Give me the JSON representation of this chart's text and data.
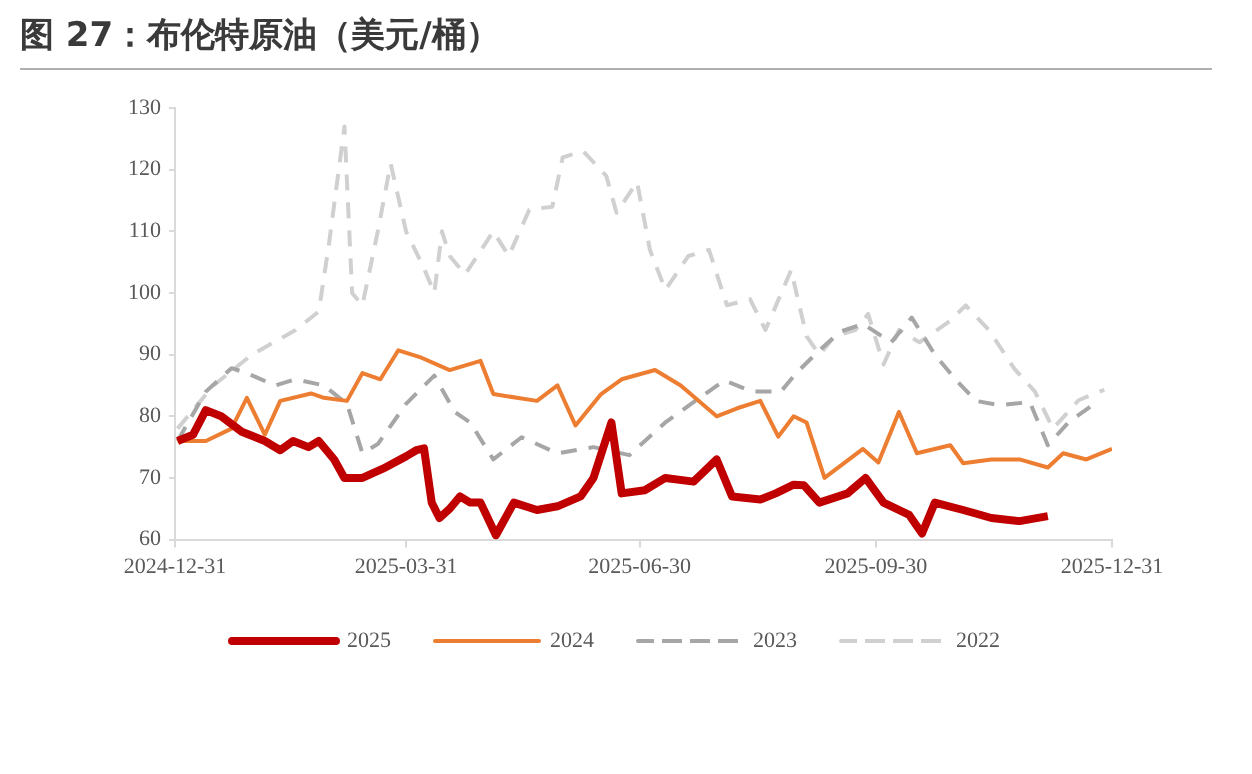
{
  "chart_data": {
    "type": "line",
    "title": "图 27：布伦特原油（美元/桶）",
    "xlim": [
      "2024-12-31",
      "2025-12-31"
    ],
    "xticks": [
      "2024-12-31",
      "2025-03-31",
      "2025-06-30",
      "2025-09-30",
      "2025-12-31"
    ],
    "ylim": [
      60,
      130
    ],
    "yticks": [
      60,
      70,
      80,
      90,
      100,
      110,
      120,
      130
    ],
    "grid": false,
    "legend": "bottom",
    "marker": "none",
    "series": [
      {
        "name": "2025",
        "color": "#c00000",
        "line_style": "solid",
        "x": [
          "2025-01-01",
          "2025-01-07",
          "2025-01-12",
          "2025-01-18",
          "2025-01-26",
          "2025-02-04",
          "2025-02-10",
          "2025-02-15",
          "2025-02-21",
          "2025-02-25",
          "2025-03-03",
          "2025-03-07",
          "2025-03-14",
          "2025-03-22",
          "2025-03-31",
          "2025-04-04",
          "2025-04-07",
          "2025-04-10",
          "2025-04-13",
          "2025-04-17",
          "2025-04-21",
          "2025-04-25",
          "2025-04-29",
          "2025-05-05",
          "2025-05-12",
          "2025-05-21",
          "2025-05-29",
          "2025-06-07",
          "2025-06-12",
          "2025-06-19",
          "2025-06-23",
          "2025-07-02",
          "2025-07-10",
          "2025-07-21",
          "2025-07-30",
          "2025-08-05",
          "2025-08-16",
          "2025-08-22",
          "2025-08-29",
          "2025-09-02",
          "2025-09-08",
          "2025-09-19",
          "2025-09-26",
          "2025-10-03",
          "2025-10-13",
          "2025-10-18",
          "2025-10-23",
          "2025-11-03",
          "2025-11-14",
          "2025-11-25",
          "2025-12-06"
        ],
        "values": [
          76,
          77,
          81,
          80,
          77.5,
          76,
          74.5,
          76,
          75,
          76,
          73,
          70,
          70,
          71.5,
          73.5,
          74.5,
          74.8,
          66,
          63.5,
          65,
          67,
          66,
          66,
          60.7,
          66,
          64.8,
          65.4,
          67,
          70,
          79,
          67.5,
          68,
          70,
          69.4,
          73,
          67,
          66.5,
          67.5,
          68.9,
          68.8,
          66,
          67.5,
          70,
          66,
          64,
          61,
          66,
          64.8,
          63.5,
          63,
          63.8
        ]
      },
      {
        "name": "2024",
        "color": "#ed7d31",
        "line_style": "solid",
        "x": [
          "2025-01-01",
          "2025-01-12",
          "2025-01-22",
          "2025-01-28",
          "2025-02-04",
          "2025-02-10",
          "2025-02-22",
          "2025-02-27",
          "2025-03-08",
          "2025-03-14",
          "2025-03-21",
          "2025-03-28",
          "2025-04-06",
          "2025-04-17",
          "2025-04-29",
          "2025-05-04",
          "2025-05-21",
          "2025-05-29",
          "2025-06-05",
          "2025-06-15",
          "2025-06-23",
          "2025-07-06",
          "2025-07-16",
          "2025-07-30",
          "2025-08-07",
          "2025-08-16",
          "2025-08-23",
          "2025-08-29",
          "2025-09-03",
          "2025-09-10",
          "2025-09-25",
          "2025-10-01",
          "2025-10-09",
          "2025-10-16",
          "2025-10-29",
          "2025-11-03",
          "2025-11-14",
          "2025-11-25",
          "2025-12-06",
          "2025-12-12",
          "2025-12-21",
          "2025-12-31"
        ],
        "values": [
          76,
          76,
          78,
          83,
          77,
          82.5,
          83.7,
          83,
          82.5,
          87,
          86,
          90.7,
          89.5,
          87.5,
          89,
          83.6,
          82.5,
          85,
          78.5,
          83.6,
          86,
          87.5,
          85,
          80,
          81.3,
          82.5,
          76.7,
          80,
          79,
          70,
          74.7,
          72.5,
          80.7,
          74,
          75.3,
          72.4,
          73,
          73,
          71.7,
          74,
          73,
          74.7
        ]
      },
      {
        "name": "2023",
        "color": "#a6a6a6",
        "line_style": "dashed",
        "x": [
          "2025-01-01",
          "2025-01-12",
          "2025-01-22",
          "2025-01-28",
          "2025-02-08",
          "2025-02-16",
          "2025-02-27",
          "2025-03-08",
          "2025-03-14",
          "2025-03-20",
          "2025-03-31",
          "2025-04-11",
          "2025-04-19",
          "2025-04-25",
          "2025-05-04",
          "2025-05-15",
          "2025-05-29",
          "2025-06-12",
          "2025-06-26",
          "2025-07-10",
          "2025-07-21",
          "2025-08-02",
          "2025-08-13",
          "2025-08-24",
          "2025-08-30",
          "2025-09-08",
          "2025-09-16",
          "2025-09-25",
          "2025-10-06",
          "2025-10-14",
          "2025-10-23",
          "2025-10-31",
          "2025-11-08",
          "2025-11-17",
          "2025-11-29",
          "2025-12-06",
          "2025-12-14",
          "2025-12-24"
        ],
        "values": [
          76,
          84,
          87.8,
          87,
          85,
          86,
          85,
          82,
          74,
          75.5,
          82,
          86.6,
          80.7,
          79,
          73,
          76.6,
          74,
          75,
          73.7,
          79,
          82.3,
          85.8,
          84,
          84,
          87,
          90.7,
          93.7,
          95,
          92,
          96,
          90,
          86,
          82.5,
          81.8,
          82.3,
          75.3,
          79,
          82
        ]
      },
      {
        "name": "2022",
        "color": "#d0d0d0",
        "line_style": "dashed",
        "x": [
          "2025-01-01",
          "2025-01-15",
          "2025-01-30",
          "2025-02-16",
          "2025-02-25",
          "2025-03-01",
          "2025-03-07",
          "2025-03-10",
          "2025-03-14",
          "2025-03-20",
          "2025-03-25",
          "2025-03-31",
          "2025-04-07",
          "2025-04-11",
          "2025-04-14",
          "2025-04-17",
          "2025-04-23",
          "2025-05-04",
          "2025-05-10",
          "2025-05-18",
          "2025-05-27",
          "2025-05-31",
          "2025-06-08",
          "2025-06-17",
          "2025-06-21",
          "2025-06-29",
          "2025-07-04",
          "2025-07-10",
          "2025-07-19",
          "2025-07-27",
          "2025-08-03",
          "2025-08-12",
          "2025-08-18",
          "2025-08-28",
          "2025-09-03",
          "2025-09-08",
          "2025-09-14",
          "2025-09-22",
          "2025-09-27",
          "2025-10-03",
          "2025-10-09",
          "2025-10-17",
          "2025-10-29",
          "2025-11-04",
          "2025-11-13",
          "2025-11-23",
          "2025-12-01",
          "2025-12-08",
          "2025-12-18",
          "2025-12-28"
        ],
        "values": [
          78,
          85,
          90,
          94,
          97,
          108,
          127,
          100,
          98,
          110,
          121,
          110,
          104,
          100,
          110,
          106,
          103,
          110,
          106,
          113.5,
          114,
          122,
          123,
          119,
          113,
          118,
          107,
          100.5,
          106,
          107,
          98,
          99,
          94,
          103.7,
          93,
          90,
          93,
          94,
          96.6,
          88.4,
          94,
          92,
          95.5,
          98,
          94,
          87.7,
          84,
          78,
          82.6,
          84.3
        ]
      }
    ]
  }
}
